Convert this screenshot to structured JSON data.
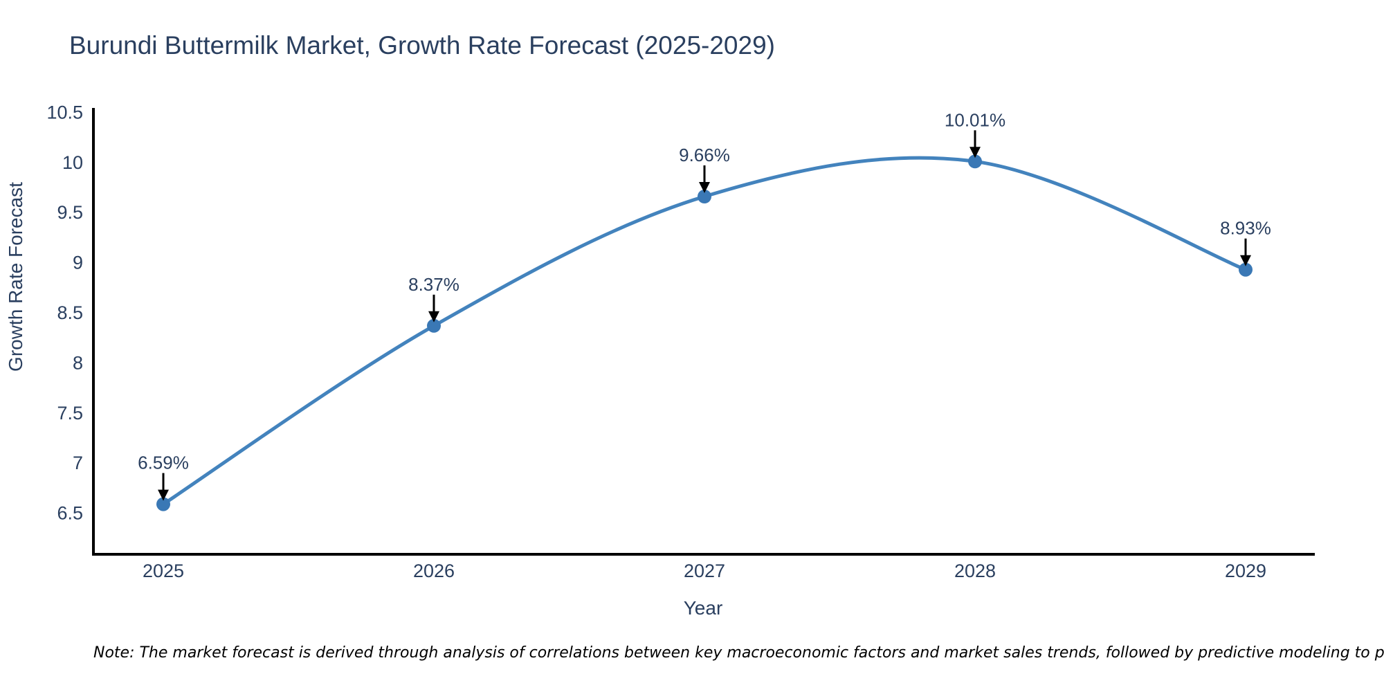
{
  "page": {
    "background": "#ffffff"
  },
  "chart_data": {
    "type": "line",
    "title": "Burundi Buttermilk Market, Growth Rate Forecast (2025-2029)",
    "xlabel": "Year",
    "ylabel": "Growth Rate Forecast",
    "categories": [
      "2025",
      "2026",
      "2027",
      "2028",
      "2029"
    ],
    "series": [
      {
        "name": "Growth Rate Forecast",
        "values": [
          6.59,
          8.37,
          9.66,
          10.01,
          8.93
        ],
        "point_labels": [
          "6.59%",
          "8.37%",
          "9.66%",
          "10.01%",
          "8.93%"
        ]
      }
    ],
    "yticks": [
      "6.5",
      "7",
      "7.5",
      "8",
      "8.5",
      "9",
      "9.5",
      "10",
      "10.5"
    ],
    "ylim": [
      6.09,
      10.53
    ],
    "line_shape": "spline",
    "grid": false,
    "legend_position": "none",
    "markers": true,
    "annotation_arrows": true,
    "colors": {
      "line": "#4383bd",
      "marker": "#3a78b5",
      "text": "#2a3f5f",
      "axis": "#000000",
      "arrow": "#000000",
      "note": "#000000",
      "background": "#ffffff"
    }
  },
  "footnote": "Note: The market forecast is derived through analysis of correlations between key macroeconomic factors and market sales trends, followed by predictive modeling to project future sal"
}
